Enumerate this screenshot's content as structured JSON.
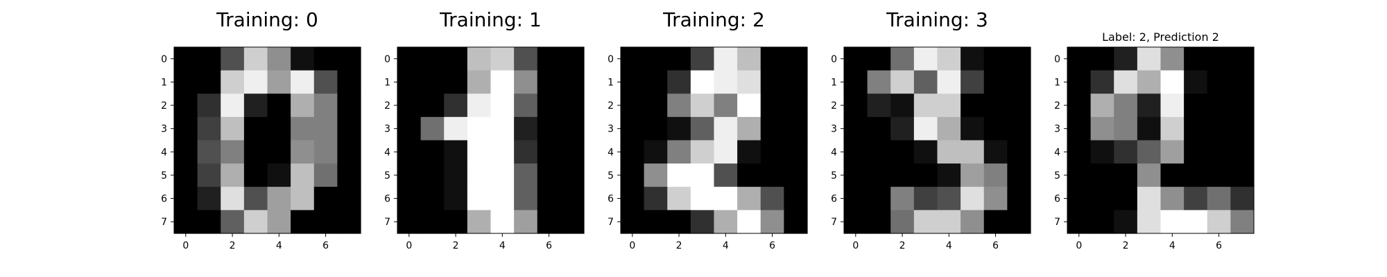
{
  "chart_data": [
    {
      "type": "heatmap",
      "title": "Training: 0",
      "colormap": "gray",
      "vmin": 0,
      "vmax": 16,
      "x_ticks": [
        0,
        2,
        4,
        6
      ],
      "y_ticks": [
        0,
        1,
        2,
        3,
        4,
        5,
        6,
        7
      ],
      "z": [
        [
          0,
          0,
          5,
          13,
          9,
          1,
          0,
          0
        ],
        [
          0,
          0,
          13,
          15,
          10,
          15,
          5,
          0
        ],
        [
          0,
          3,
          15,
          2,
          0,
          11,
          8,
          0
        ],
        [
          0,
          4,
          12,
          0,
          0,
          8,
          8,
          0
        ],
        [
          0,
          5,
          8,
          0,
          0,
          9,
          8,
          0
        ],
        [
          0,
          4,
          11,
          0,
          1,
          12,
          7,
          0
        ],
        [
          0,
          2,
          14,
          5,
          10,
          12,
          0,
          0
        ],
        [
          0,
          0,
          6,
          13,
          10,
          0,
          0,
          0
        ]
      ]
    },
    {
      "type": "heatmap",
      "title": "Training: 1",
      "colormap": "gray",
      "vmin": 0,
      "vmax": 16,
      "x_ticks": [
        0,
        2,
        4,
        6
      ],
      "y_ticks": [
        0,
        1,
        2,
        3,
        4,
        5,
        6,
        7
      ],
      "z": [
        [
          0,
          0,
          0,
          12,
          13,
          5,
          0,
          0
        ],
        [
          0,
          0,
          0,
          11,
          16,
          9,
          0,
          0
        ],
        [
          0,
          0,
          3,
          15,
          16,
          6,
          0,
          0
        ],
        [
          0,
          7,
          15,
          16,
          16,
          2,
          0,
          0
        ],
        [
          0,
          0,
          1,
          16,
          16,
          3,
          0,
          0
        ],
        [
          0,
          0,
          1,
          16,
          16,
          6,
          0,
          0
        ],
        [
          0,
          0,
          1,
          16,
          16,
          6,
          0,
          0
        ],
        [
          0,
          0,
          0,
          11,
          16,
          10,
          0,
          0
        ]
      ]
    },
    {
      "type": "heatmap",
      "title": "Training: 2",
      "colormap": "gray",
      "vmin": 0,
      "vmax": 16,
      "x_ticks": [
        0,
        2,
        4,
        6
      ],
      "y_ticks": [
        0,
        1,
        2,
        3,
        4,
        5,
        6,
        7
      ],
      "z": [
        [
          0,
          0,
          0,
          4,
          15,
          12,
          0,
          0
        ],
        [
          0,
          0,
          3,
          16,
          15,
          14,
          0,
          0
        ],
        [
          0,
          0,
          8,
          13,
          8,
          16,
          0,
          0
        ],
        [
          0,
          0,
          1,
          6,
          15,
          11,
          0,
          0
        ],
        [
          0,
          1,
          8,
          13,
          15,
          1,
          0,
          0
        ],
        [
          0,
          9,
          16,
          16,
          5,
          0,
          0,
          0
        ],
        [
          0,
          3,
          13,
          16,
          16,
          11,
          5,
          0
        ],
        [
          0,
          0,
          0,
          3,
          11,
          16,
          9,
          0
        ]
      ]
    },
    {
      "type": "heatmap",
      "title": "Training: 3",
      "colormap": "gray",
      "vmin": 0,
      "vmax": 16,
      "x_ticks": [
        0,
        2,
        4,
        6
      ],
      "y_ticks": [
        0,
        1,
        2,
        3,
        4,
        5,
        6,
        7
      ],
      "z": [
        [
          0,
          0,
          7,
          15,
          13,
          1,
          0,
          0
        ],
        [
          0,
          8,
          13,
          6,
          15,
          4,
          0,
          0
        ],
        [
          0,
          2,
          1,
          13,
          13,
          0,
          0,
          0
        ],
        [
          0,
          0,
          2,
          15,
          11,
          1,
          0,
          0
        ],
        [
          0,
          0,
          0,
          1,
          12,
          12,
          1,
          0
        ],
        [
          0,
          0,
          0,
          0,
          1,
          10,
          8,
          0
        ],
        [
          0,
          0,
          8,
          4,
          5,
          14,
          9,
          0
        ],
        [
          0,
          0,
          7,
          13,
          13,
          9,
          0,
          0
        ]
      ]
    },
    {
      "type": "heatmap",
      "title": "Label: 2, Prediction 2",
      "colormap": "gray",
      "vmin": 0,
      "vmax": 16,
      "x_ticks": [
        0,
        2,
        4,
        6
      ],
      "y_ticks": [
        0,
        1,
        2,
        3,
        4,
        5,
        6,
        7
      ],
      "z": [
        [
          0,
          0,
          2,
          14,
          9,
          0,
          0,
          0
        ],
        [
          0,
          3,
          14,
          11,
          16,
          1,
          0,
          0
        ],
        [
          0,
          11,
          8,
          2,
          15,
          0,
          0,
          0
        ],
        [
          0,
          9,
          8,
          1,
          13,
          0,
          0,
          0
        ],
        [
          0,
          1,
          3,
          6,
          10,
          0,
          0,
          0
        ],
        [
          0,
          0,
          0,
          9,
          0,
          0,
          0,
          0
        ],
        [
          0,
          0,
          0,
          14,
          9,
          4,
          7,
          3
        ],
        [
          0,
          0,
          1,
          14,
          16,
          16,
          13,
          8
        ]
      ]
    }
  ]
}
